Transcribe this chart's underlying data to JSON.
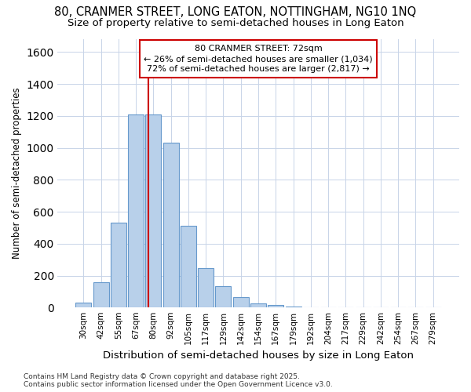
{
  "title1": "80, CRANMER STREET, LONG EATON, NOTTINGHAM, NG10 1NQ",
  "title2": "Size of property relative to semi-detached houses in Long Eaton",
  "xlabel": "Distribution of semi-detached houses by size in Long Eaton",
  "ylabel": "Number of semi-detached properties",
  "bin_labels": [
    "30sqm",
    "42sqm",
    "55sqm",
    "67sqm",
    "80sqm",
    "92sqm",
    "105sqm",
    "117sqm",
    "129sqm",
    "142sqm",
    "154sqm",
    "167sqm",
    "179sqm",
    "192sqm",
    "204sqm",
    "217sqm",
    "229sqm",
    "242sqm",
    "254sqm",
    "267sqm",
    "279sqm"
  ],
  "bar_values": [
    30,
    160,
    530,
    1210,
    1210,
    1030,
    510,
    245,
    135,
    65,
    25,
    15,
    5,
    0,
    0,
    0,
    0,
    0,
    0,
    0,
    0
  ],
  "bar_color": "#b8d0ea",
  "bar_edge_color": "#6699cc",
  "vline_x_index": 3.73,
  "vline_color": "#cc0000",
  "annotation_text": "80 CRANMER STREET: 72sqm\n← 26% of semi-detached houses are smaller (1,034)\n72% of semi-detached houses are larger (2,817) →",
  "annotation_box_facecolor": "#ffffff",
  "annotation_box_edgecolor": "#cc0000",
  "footer_text": "Contains HM Land Registry data © Crown copyright and database right 2025.\nContains public sector information licensed under the Open Government Licence v3.0.",
  "bg_color": "#ffffff",
  "plot_bg_color": "#ffffff",
  "ylim": [
    0,
    1680
  ],
  "yticks": [
    0,
    200,
    400,
    600,
    800,
    1000,
    1200,
    1400,
    1600
  ],
  "grid_color": "#c8d4e8",
  "title_fontsize": 10.5,
  "subtitle_fontsize": 9.5,
  "tick_fontsize": 7.5,
  "ylabel_fontsize": 8.5,
  "xlabel_fontsize": 9.5,
  "footer_fontsize": 6.5,
  "ann_fontsize": 8
}
